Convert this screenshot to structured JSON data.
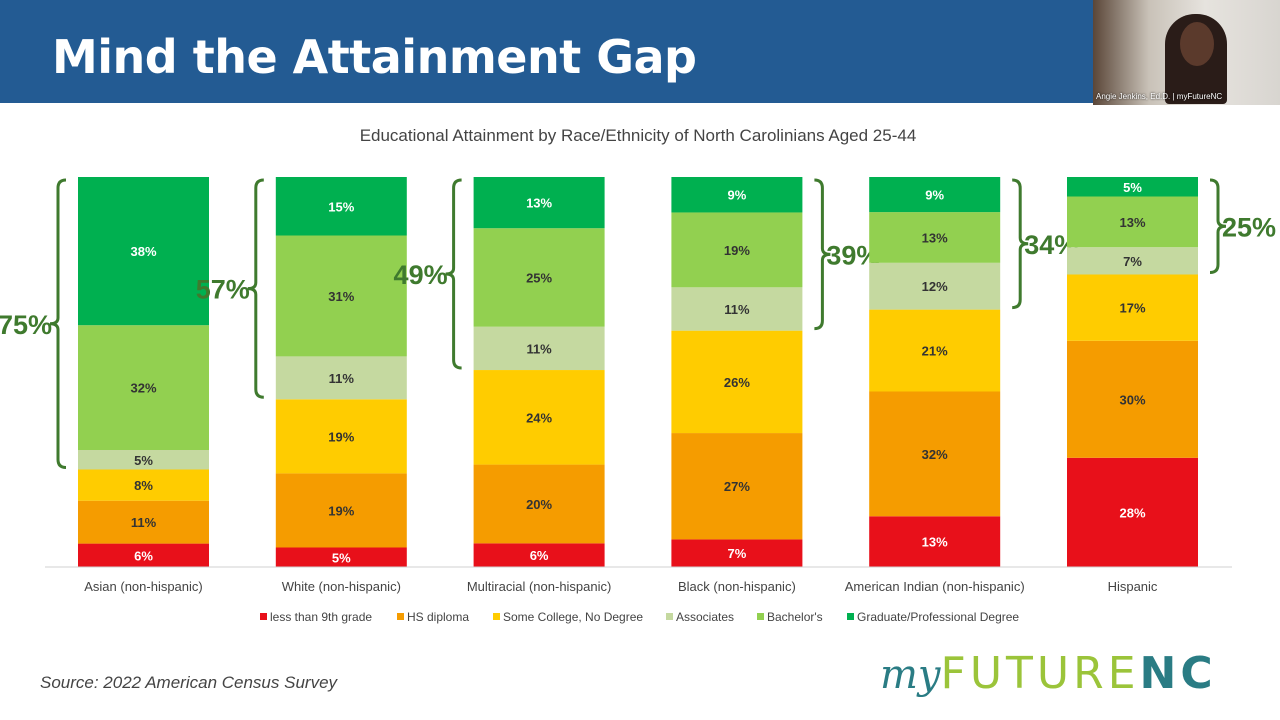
{
  "slide": {
    "title": "Mind the Attainment Gap",
    "source": "Source: 2022 American Census Survey",
    "logo_text": "myFUTURENC"
  },
  "webcam": {
    "name": "Angie Jenkins, Ed.D. | myFutureNC"
  },
  "chart_data": {
    "type": "stacked-bar",
    "title": "Educational Attainment by Race/Ethnicity of North Carolinians Aged 25-44",
    "categories": [
      "Asian (non-hispanic)",
      "White (non-hispanic)",
      "Multiracial (non-hispanic)",
      "Black (non-hispanic)",
      "American Indian (non-hispanic)",
      "Hispanic"
    ],
    "unit": "%",
    "legend_placement": "bottom",
    "series": [
      {
        "name": "less than 9th grade",
        "color": "#e8101a",
        "values": [
          6,
          5,
          6,
          7,
          13,
          28
        ]
      },
      {
        "name": "HS diploma",
        "color": "#f59c00",
        "values": [
          11,
          19,
          20,
          27,
          32,
          30
        ]
      },
      {
        "name": "Some College, No Degree",
        "color": "#ffcc00",
        "values": [
          8,
          19,
          24,
          26,
          21,
          17
        ]
      },
      {
        "name": "Associates",
        "color": "#c5d9a0",
        "values": [
          5,
          11,
          11,
          11,
          12,
          7
        ]
      },
      {
        "name": "Bachelor's",
        "color": "#92d050",
        "values": [
          32,
          31,
          25,
          19,
          13,
          13
        ]
      },
      {
        "name": "Graduate/Professional Degree",
        "color": "#00b050",
        "values": [
          38,
          15,
          13,
          9,
          9,
          5
        ]
      }
    ],
    "annotations": [
      {
        "label": "75%",
        "side": "left"
      },
      {
        "label": "57%",
        "side": "left"
      },
      {
        "label": "49%",
        "side": "left"
      },
      {
        "label": "39%",
        "side": "right"
      },
      {
        "label": "34%",
        "side": "right"
      },
      {
        "label": "25%",
        "side": "right"
      }
    ],
    "annotation_color": "#3f7a2e"
  }
}
